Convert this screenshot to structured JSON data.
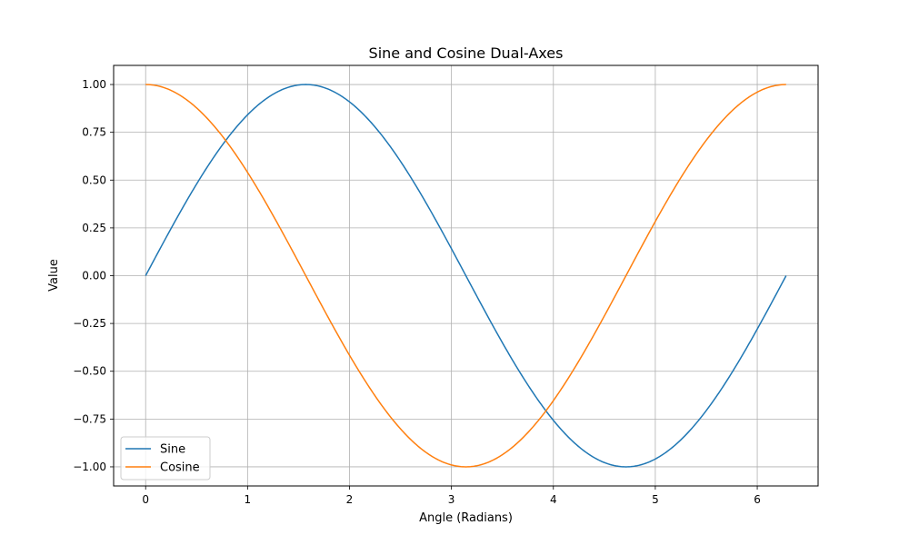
{
  "chart_data": {
    "type": "line",
    "title": "Sine and Cosine Dual-Axes",
    "xlabel": "Angle (Radians)",
    "ylabel": "Value",
    "xlim": [
      -0.314,
      6.597
    ],
    "ylim": [
      -1.1,
      1.1
    ],
    "x_domain": [
      0,
      6.283
    ],
    "xticks": [
      0,
      1,
      2,
      3,
      4,
      5,
      6
    ],
    "xtick_labels": [
      "0",
      "1",
      "2",
      "3",
      "4",
      "5",
      "6"
    ],
    "yticks": [
      1.0,
      0.75,
      0.5,
      0.25,
      0.0,
      -0.25,
      -0.5,
      -0.75,
      -1.0
    ],
    "ytick_labels": [
      "1.00",
      "0.75",
      "0.50",
      "0.25",
      "0.00",
      "−0.25",
      "−0.50",
      "−0.75",
      "−1.00"
    ],
    "grid": true,
    "legend_position": "bottom-left",
    "series": [
      {
        "name": "Sine",
        "function": "sin",
        "color": "#1f77b4"
      },
      {
        "name": "Cosine",
        "function": "cos",
        "color": "#ff7f0e"
      }
    ]
  }
}
